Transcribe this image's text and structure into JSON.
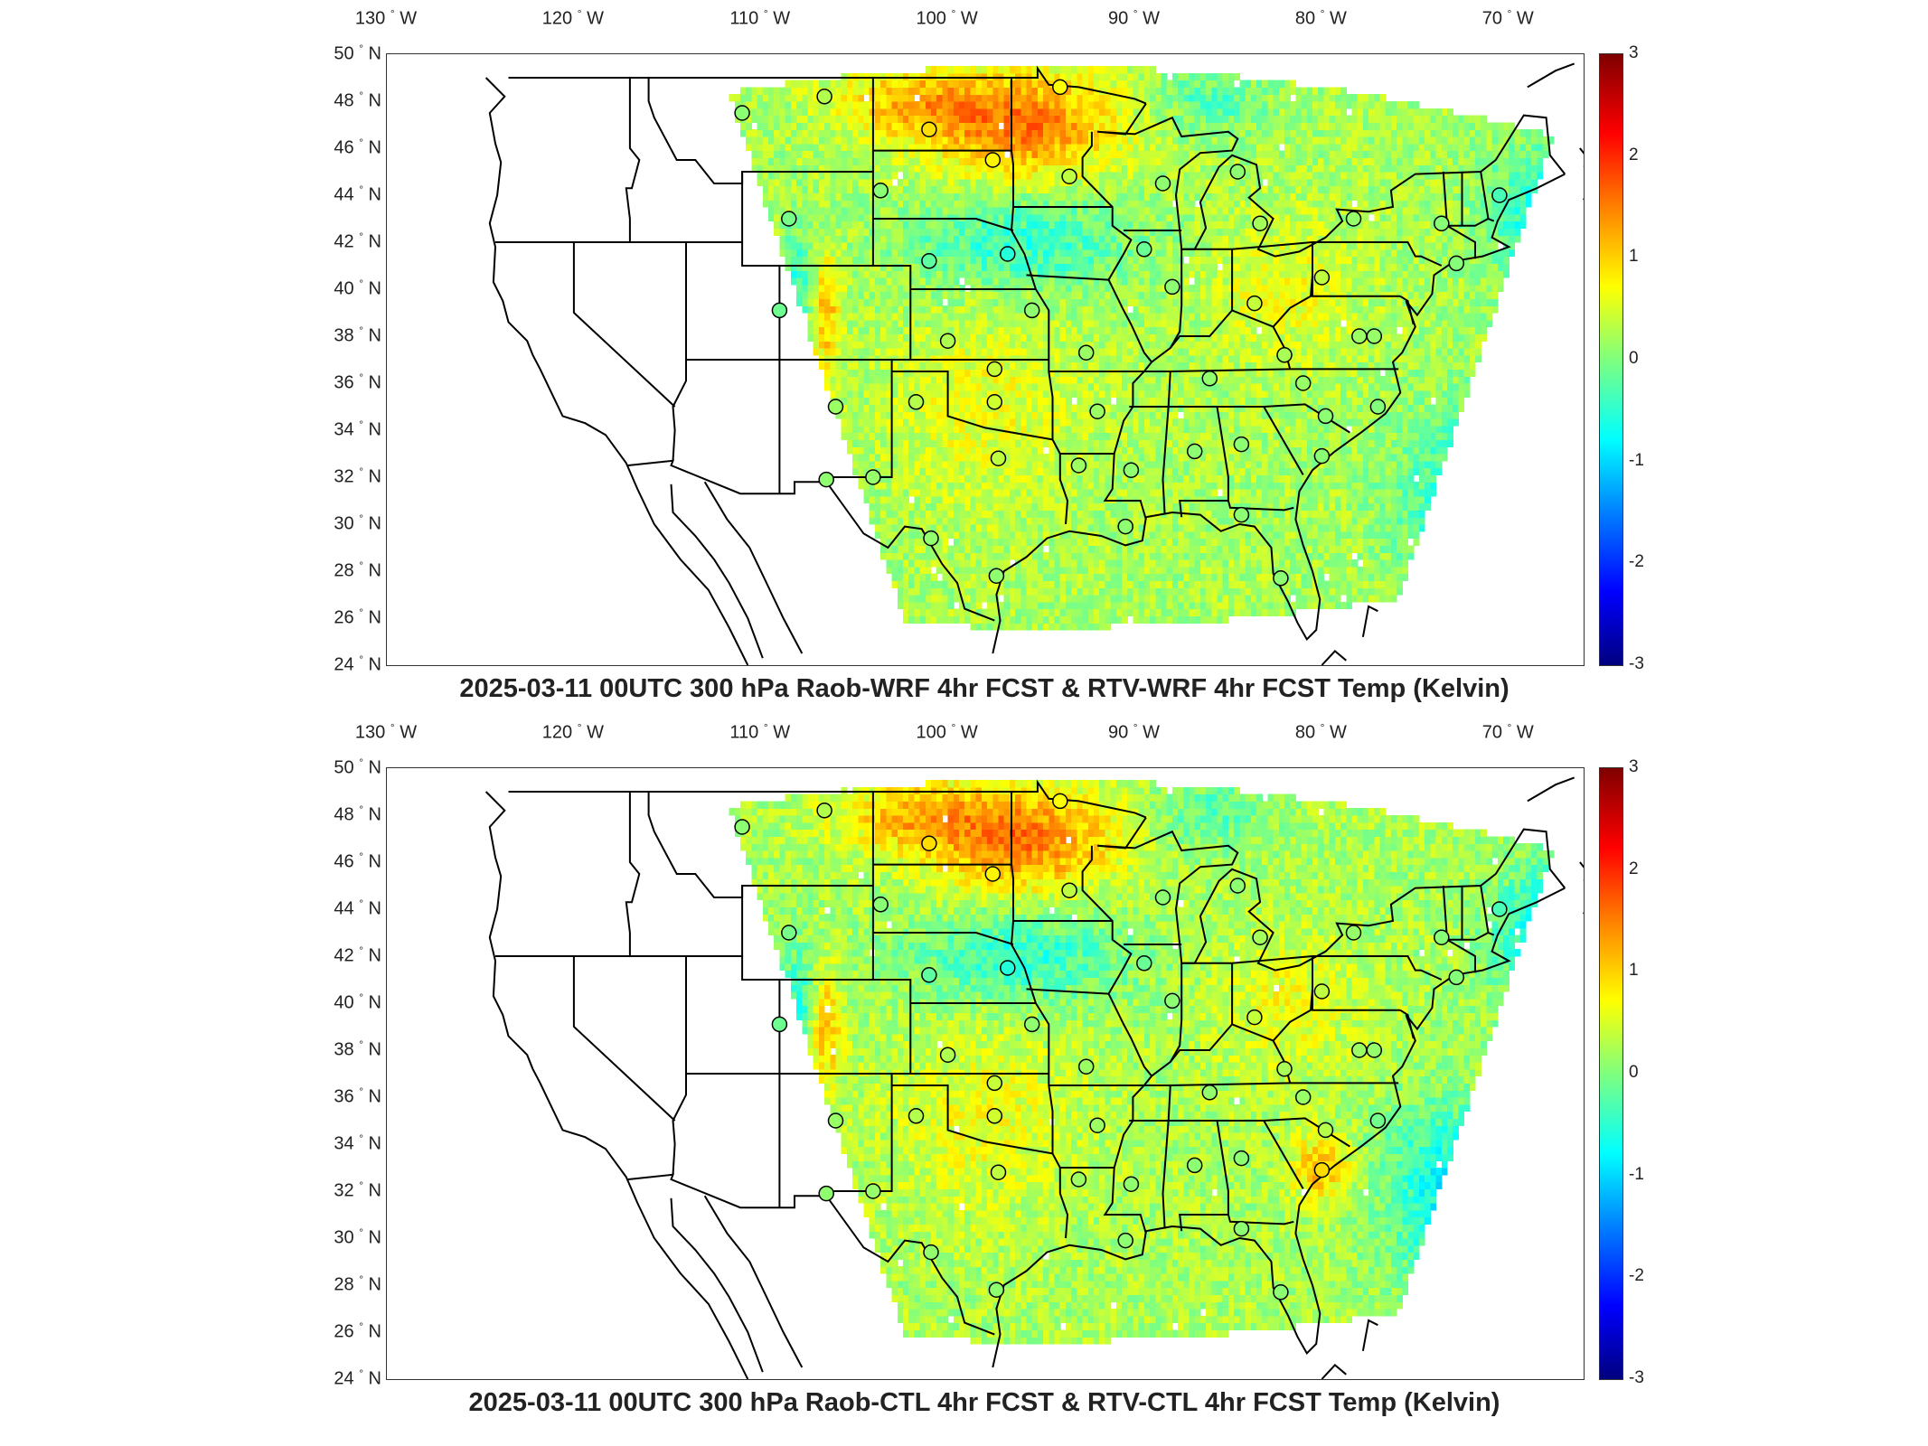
{
  "axis_lon_ticks": [
    "130",
    "120",
    "110",
    "100",
    "90",
    "80",
    "70"
  ],
  "axis_lon_suffix": "W",
  "axis_lat_ticks": [
    "50",
    "48",
    "46",
    "44",
    "42",
    "40",
    "38",
    "36",
    "34",
    "32",
    "30",
    "28",
    "26",
    "24"
  ],
  "axis_lat_suffix": "N",
  "degree_symbol": "°",
  "colorbar": {
    "ticks": [
      "3",
      "2",
      "1",
      "0",
      "-1",
      "-2",
      "-3"
    ],
    "range": [
      -3,
      3
    ],
    "colormap": "jet"
  },
  "panels": [
    {
      "title": "2025-03-11 00UTC 300 hPa Raob-WRF 4hr FCST & RTV-WRF 4hr FCST Temp (Kelvin)"
    },
    {
      "title": "2025-03-11 00UTC 300 hPa Raob-CTL 4hr FCST & RTV-CTL 4hr FCST Temp (Kelvin)"
    }
  ],
  "map_extent": {
    "lon_range": [
      -130,
      -66
    ],
    "lat_range": [
      24,
      50
    ]
  },
  "stations": [
    [
      -111.0,
      47.5
    ],
    [
      -106.6,
      48.2
    ],
    [
      -101.0,
      46.8
    ],
    [
      -97.6,
      45.5
    ],
    [
      -94.0,
      48.6
    ],
    [
      -93.5,
      44.8
    ],
    [
      -108.5,
      43.0
    ],
    [
      -103.6,
      44.2
    ],
    [
      -101.0,
      41.2
    ],
    [
      -96.8,
      41.5
    ],
    [
      -89.5,
      41.7
    ],
    [
      -88.5,
      44.5
    ],
    [
      -84.5,
      45.0
    ],
    [
      -83.3,
      42.8
    ],
    [
      -78.3,
      43.0
    ],
    [
      -73.6,
      42.8
    ],
    [
      -70.5,
      44.0
    ],
    [
      -72.8,
      41.1
    ],
    [
      -77.2,
      38.0
    ],
    [
      -80.0,
      40.5
    ],
    [
      -83.6,
      39.4
    ],
    [
      -86.0,
      36.2
    ],
    [
      -88.0,
      40.1
    ],
    [
      -92.6,
      37.3
    ],
    [
      -95.5,
      39.1
    ],
    [
      -100.0,
      37.8
    ],
    [
      -97.5,
      36.6
    ],
    [
      -97.5,
      35.2
    ],
    [
      -101.7,
      35.2
    ],
    [
      -106.0,
      35.0
    ],
    [
      -106.5,
      31.9
    ],
    [
      -104.0,
      32.0
    ],
    [
      -97.3,
      32.8
    ],
    [
      -92.0,
      34.8
    ],
    [
      -93.0,
      32.5
    ],
    [
      -90.2,
      32.3
    ],
    [
      -86.8,
      33.1
    ],
    [
      -84.3,
      33.4
    ],
    [
      -80.0,
      32.9
    ],
    [
      -79.8,
      34.6
    ],
    [
      -81.0,
      36.0
    ],
    [
      -82.0,
      37.2
    ],
    [
      -77.0,
      35.0
    ],
    [
      -84.3,
      30.4
    ],
    [
      -82.2,
      27.7
    ],
    [
      -90.5,
      29.9
    ],
    [
      -97.4,
      27.8
    ],
    [
      -100.9,
      29.4
    ],
    [
      -109.0,
      39.1
    ],
    [
      -78.0,
      38.0
    ]
  ]
}
